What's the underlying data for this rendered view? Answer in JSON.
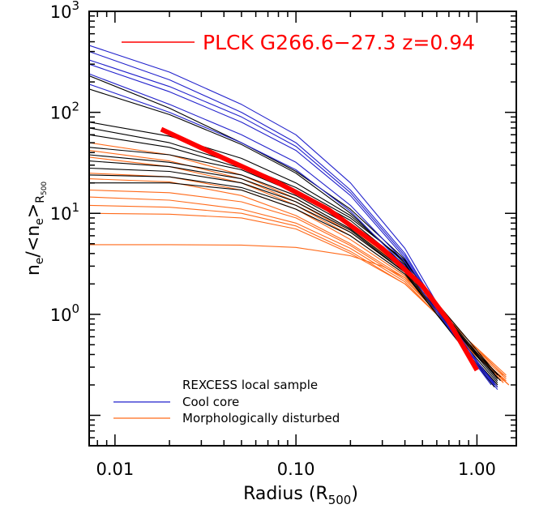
{
  "chart_data": {
    "type": "line",
    "xlabel": "Radius (R",
    "xlabel_sub": "500",
    "xlabel_close": ")",
    "ylabel": {
      "n": "n",
      "e": "e",
      "slash": "/<n",
      "e2": "e",
      "gt": ">",
      "R": "R",
      "sub500": "500"
    },
    "x_scale": "log",
    "y_scale": "log",
    "xlim": [
      0.0072,
      1.65
    ],
    "ylim": [
      0.05,
      1000
    ],
    "x_ticks": [
      {
        "value": 0.01,
        "label": "0.01"
      },
      {
        "value": 0.1,
        "label": "0.10"
      },
      {
        "value": 1.0,
        "label": "1.00"
      }
    ],
    "y_ticks": [
      {
        "value": 1,
        "base": "10",
        "exp": "0"
      },
      {
        "value": 10,
        "base": "10",
        "exp": "1"
      },
      {
        "value": 100,
        "base": "10",
        "exp": "2"
      },
      {
        "value": 1000,
        "base": "10",
        "exp": "3"
      }
    ],
    "legend_top": {
      "label": "PLCK G266.6−27.3 z=0.94",
      "color": "#ff0000",
      "placement": "top"
    },
    "legend_bottom": {
      "title": "REXCESS local sample",
      "entries": [
        {
          "key": "cool_core",
          "label": "Cool core",
          "color": "#2222cc"
        },
        {
          "key": "disturbed",
          "label": "Morphologically disturbed",
          "color": "#ff6a1a"
        }
      ],
      "placement": "bottom-left"
    },
    "colors": {
      "cool_core": "#2222cc",
      "disturbed": "#ff6a1a",
      "other": "#000000",
      "highlight": "#ff0000"
    },
    "series": [
      {
        "group": "highlight",
        "x": [
          0.018,
          0.04,
          0.08,
          0.15,
          0.3,
          0.5,
          0.7,
          1.0
        ],
        "y": [
          68,
          35,
          20,
          11,
          4.5,
          1.9,
          0.85,
          0.28
        ]
      },
      {
        "group": "cool_core",
        "x": [
          0.0072,
          0.02,
          0.05,
          0.1,
          0.2,
          0.4,
          0.6,
          0.9,
          1.2
        ],
        "y": [
          460,
          250,
          120,
          60,
          20,
          4.5,
          1.3,
          0.45,
          0.22
        ]
      },
      {
        "group": "cool_core",
        "x": [
          0.0072,
          0.02,
          0.05,
          0.1,
          0.2,
          0.4,
          0.6,
          0.9,
          1.25
        ],
        "y": [
          400,
          210,
          100,
          50,
          17,
          4.0,
          1.2,
          0.42,
          0.21
        ]
      },
      {
        "group": "cool_core",
        "x": [
          0.0072,
          0.02,
          0.05,
          0.1,
          0.2,
          0.4,
          0.6,
          0.9,
          1.3
        ],
        "y": [
          300,
          160,
          80,
          42,
          15,
          3.6,
          1.15,
          0.42,
          0.19
        ]
      },
      {
        "group": "cool_core",
        "x": [
          0.0072,
          0.02,
          0.05,
          0.1,
          0.2,
          0.4,
          0.6,
          0.9,
          1.2
        ],
        "y": [
          240,
          120,
          60,
          32,
          12,
          3.3,
          1.1,
          0.4,
          0.2
        ]
      },
      {
        "group": "cool_core",
        "x": [
          0.0072,
          0.02,
          0.05,
          0.1,
          0.2,
          0.4,
          0.6,
          0.9,
          1.3
        ],
        "y": [
          190,
          100,
          50,
          27,
          10.5,
          3.0,
          1.05,
          0.4,
          0.18
        ]
      },
      {
        "group": "cool_core",
        "x": [
          0.0072,
          0.02,
          0.05,
          0.1,
          0.2,
          0.4,
          0.6,
          0.9,
          1.25
        ],
        "y": [
          330,
          180,
          90,
          46,
          16,
          3.8,
          1.18,
          0.43,
          0.2
        ]
      },
      {
        "group": "other",
        "x": [
          0.0072,
          0.02,
          0.05,
          0.1,
          0.2,
          0.4,
          0.6,
          0.9,
          1.3
        ],
        "y": [
          230,
          110,
          50,
          26,
          11,
          3.5,
          1.2,
          0.48,
          0.22
        ]
      },
      {
        "group": "other",
        "x": [
          0.0072,
          0.02,
          0.05,
          0.1,
          0.2,
          0.4,
          0.6,
          0.9,
          1.35
        ],
        "y": [
          170,
          95,
          48,
          25,
          10,
          3.2,
          1.15,
          0.5,
          0.24
        ]
      },
      {
        "group": "other",
        "x": [
          0.0072,
          0.02,
          0.05,
          0.1,
          0.2,
          0.4,
          0.6,
          0.9,
          1.3
        ],
        "y": [
          80,
          58,
          35,
          20,
          9.5,
          3.3,
          1.3,
          0.55,
          0.25
        ]
      },
      {
        "group": "other",
        "x": [
          0.0072,
          0.02,
          0.05,
          0.1,
          0.2,
          0.4,
          0.6,
          0.9,
          1.25
        ],
        "y": [
          70,
          50,
          30,
          18,
          9,
          3.4,
          1.25,
          0.52,
          0.26
        ]
      },
      {
        "group": "other",
        "x": [
          0.0072,
          0.02,
          0.05,
          0.1,
          0.2,
          0.4,
          0.6,
          0.9,
          1.3
        ],
        "y": [
          60,
          45,
          28,
          17,
          8.5,
          3.1,
          1.2,
          0.5,
          0.23
        ]
      },
      {
        "group": "other",
        "x": [
          0.0072,
          0.02,
          0.05,
          0.1,
          0.2,
          0.4,
          0.6,
          0.9,
          1.35
        ],
        "y": [
          45,
          38,
          27,
          16,
          8,
          3.0,
          1.2,
          0.48,
          0.22
        ]
      },
      {
        "group": "other",
        "x": [
          0.0072,
          0.02,
          0.05,
          0.1,
          0.2,
          0.4,
          0.6,
          0.9,
          1.3
        ],
        "y": [
          38,
          32,
          24,
          15,
          7.5,
          2.8,
          1.1,
          0.45,
          0.21
        ]
      },
      {
        "group": "other",
        "x": [
          0.0072,
          0.02,
          0.05,
          0.1,
          0.2,
          0.4,
          0.6,
          0.9,
          1.3
        ],
        "y": [
          33,
          29,
          22,
          14,
          7,
          2.7,
          1.05,
          0.42,
          0.2
        ]
      },
      {
        "group": "other",
        "x": [
          0.0072,
          0.02,
          0.05,
          0.1,
          0.2,
          0.4,
          0.6,
          0.9,
          1.25
        ],
        "y": [
          28,
          26,
          20,
          13,
          6.8,
          2.6,
          1.0,
          0.4,
          0.19
        ]
      },
      {
        "group": "other",
        "x": [
          0.0072,
          0.02,
          0.05,
          0.1,
          0.2,
          0.4,
          0.6,
          0.9,
          1.3
        ],
        "y": [
          24,
          23,
          18,
          12,
          6.5,
          2.6,
          1.0,
          0.42,
          0.2
        ]
      },
      {
        "group": "other",
        "x": [
          0.0072,
          0.02,
          0.05,
          0.1,
          0.2,
          0.4,
          0.6,
          0.9,
          1.3
        ],
        "y": [
          20,
          20,
          17,
          11,
          6,
          2.5,
          1.0,
          0.4,
          0.19
        ]
      },
      {
        "group": "disturbed",
        "x": [
          0.0072,
          0.02,
          0.05,
          0.1,
          0.2,
          0.4,
          0.6,
          0.9,
          1.4
        ],
        "y": [
          50,
          38,
          24,
          14,
          7,
          2.8,
          1.2,
          0.55,
          0.25
        ]
      },
      {
        "group": "disturbed",
        "x": [
          0.0072,
          0.02,
          0.05,
          0.1,
          0.2,
          0.4,
          0.6,
          0.9,
          1.45
        ],
        "y": [
          42,
          33,
          22,
          13,
          6.5,
          2.6,
          1.15,
          0.52,
          0.24
        ]
      },
      {
        "group": "disturbed",
        "x": [
          0.0072,
          0.02,
          0.05,
          0.1,
          0.2,
          0.4,
          0.6,
          0.9,
          1.4
        ],
        "y": [
          36,
          29,
          20,
          12,
          6,
          2.5,
          1.1,
          0.5,
          0.22
        ]
      },
      {
        "group": "disturbed",
        "x": [
          0.0072,
          0.02,
          0.05,
          0.1,
          0.2,
          0.4,
          0.6,
          0.9,
          1.5
        ],
        "y": [
          25,
          23,
          17,
          11,
          5.5,
          2.4,
          1.1,
          0.5,
          0.2
        ]
      },
      {
        "group": "disturbed",
        "x": [
          0.0072,
          0.02,
          0.05,
          0.1,
          0.2,
          0.4,
          0.6,
          0.9,
          1.4
        ],
        "y": [
          22,
          20.5,
          15,
          9.5,
          5,
          2.3,
          1.05,
          0.48,
          0.21
        ]
      },
      {
        "group": "disturbed",
        "x": [
          0.0072,
          0.02,
          0.05,
          0.1,
          0.2,
          0.4,
          0.6,
          0.9,
          1.45
        ],
        "y": [
          17,
          16,
          13,
          9,
          4.8,
          2.2,
          1.05,
          0.5,
          0.23
        ]
      },
      {
        "group": "disturbed",
        "x": [
          0.0072,
          0.02,
          0.05,
          0.1,
          0.2,
          0.4,
          0.6,
          0.9,
          1.4
        ],
        "y": [
          14.5,
          13.5,
          11,
          8,
          4.5,
          2.1,
          1.0,
          0.47,
          0.21
        ]
      },
      {
        "group": "disturbed",
        "x": [
          0.0072,
          0.02,
          0.05,
          0.1,
          0.2,
          0.4,
          0.6,
          0.9,
          1.45
        ],
        "y": [
          12,
          11.5,
          10,
          7.5,
          4.2,
          2.0,
          1.0,
          0.46,
          0.22
        ]
      },
      {
        "group": "disturbed",
        "x": [
          0.0072,
          0.02,
          0.05,
          0.1,
          0.2,
          0.4,
          0.6,
          0.9,
          1.5
        ],
        "y": [
          10,
          9.8,
          9,
          7,
          4.0,
          2.0,
          1.0,
          0.45,
          0.2
        ]
      },
      {
        "group": "disturbed",
        "x": [
          0.0072,
          0.02,
          0.05,
          0.1,
          0.2,
          0.3,
          0.4,
          0.6,
          0.9,
          1.45
        ],
        "y": [
          4.9,
          4.9,
          4.85,
          4.6,
          3.8,
          3.0,
          2.3,
          1.3,
          0.55,
          0.25
        ]
      }
    ]
  }
}
